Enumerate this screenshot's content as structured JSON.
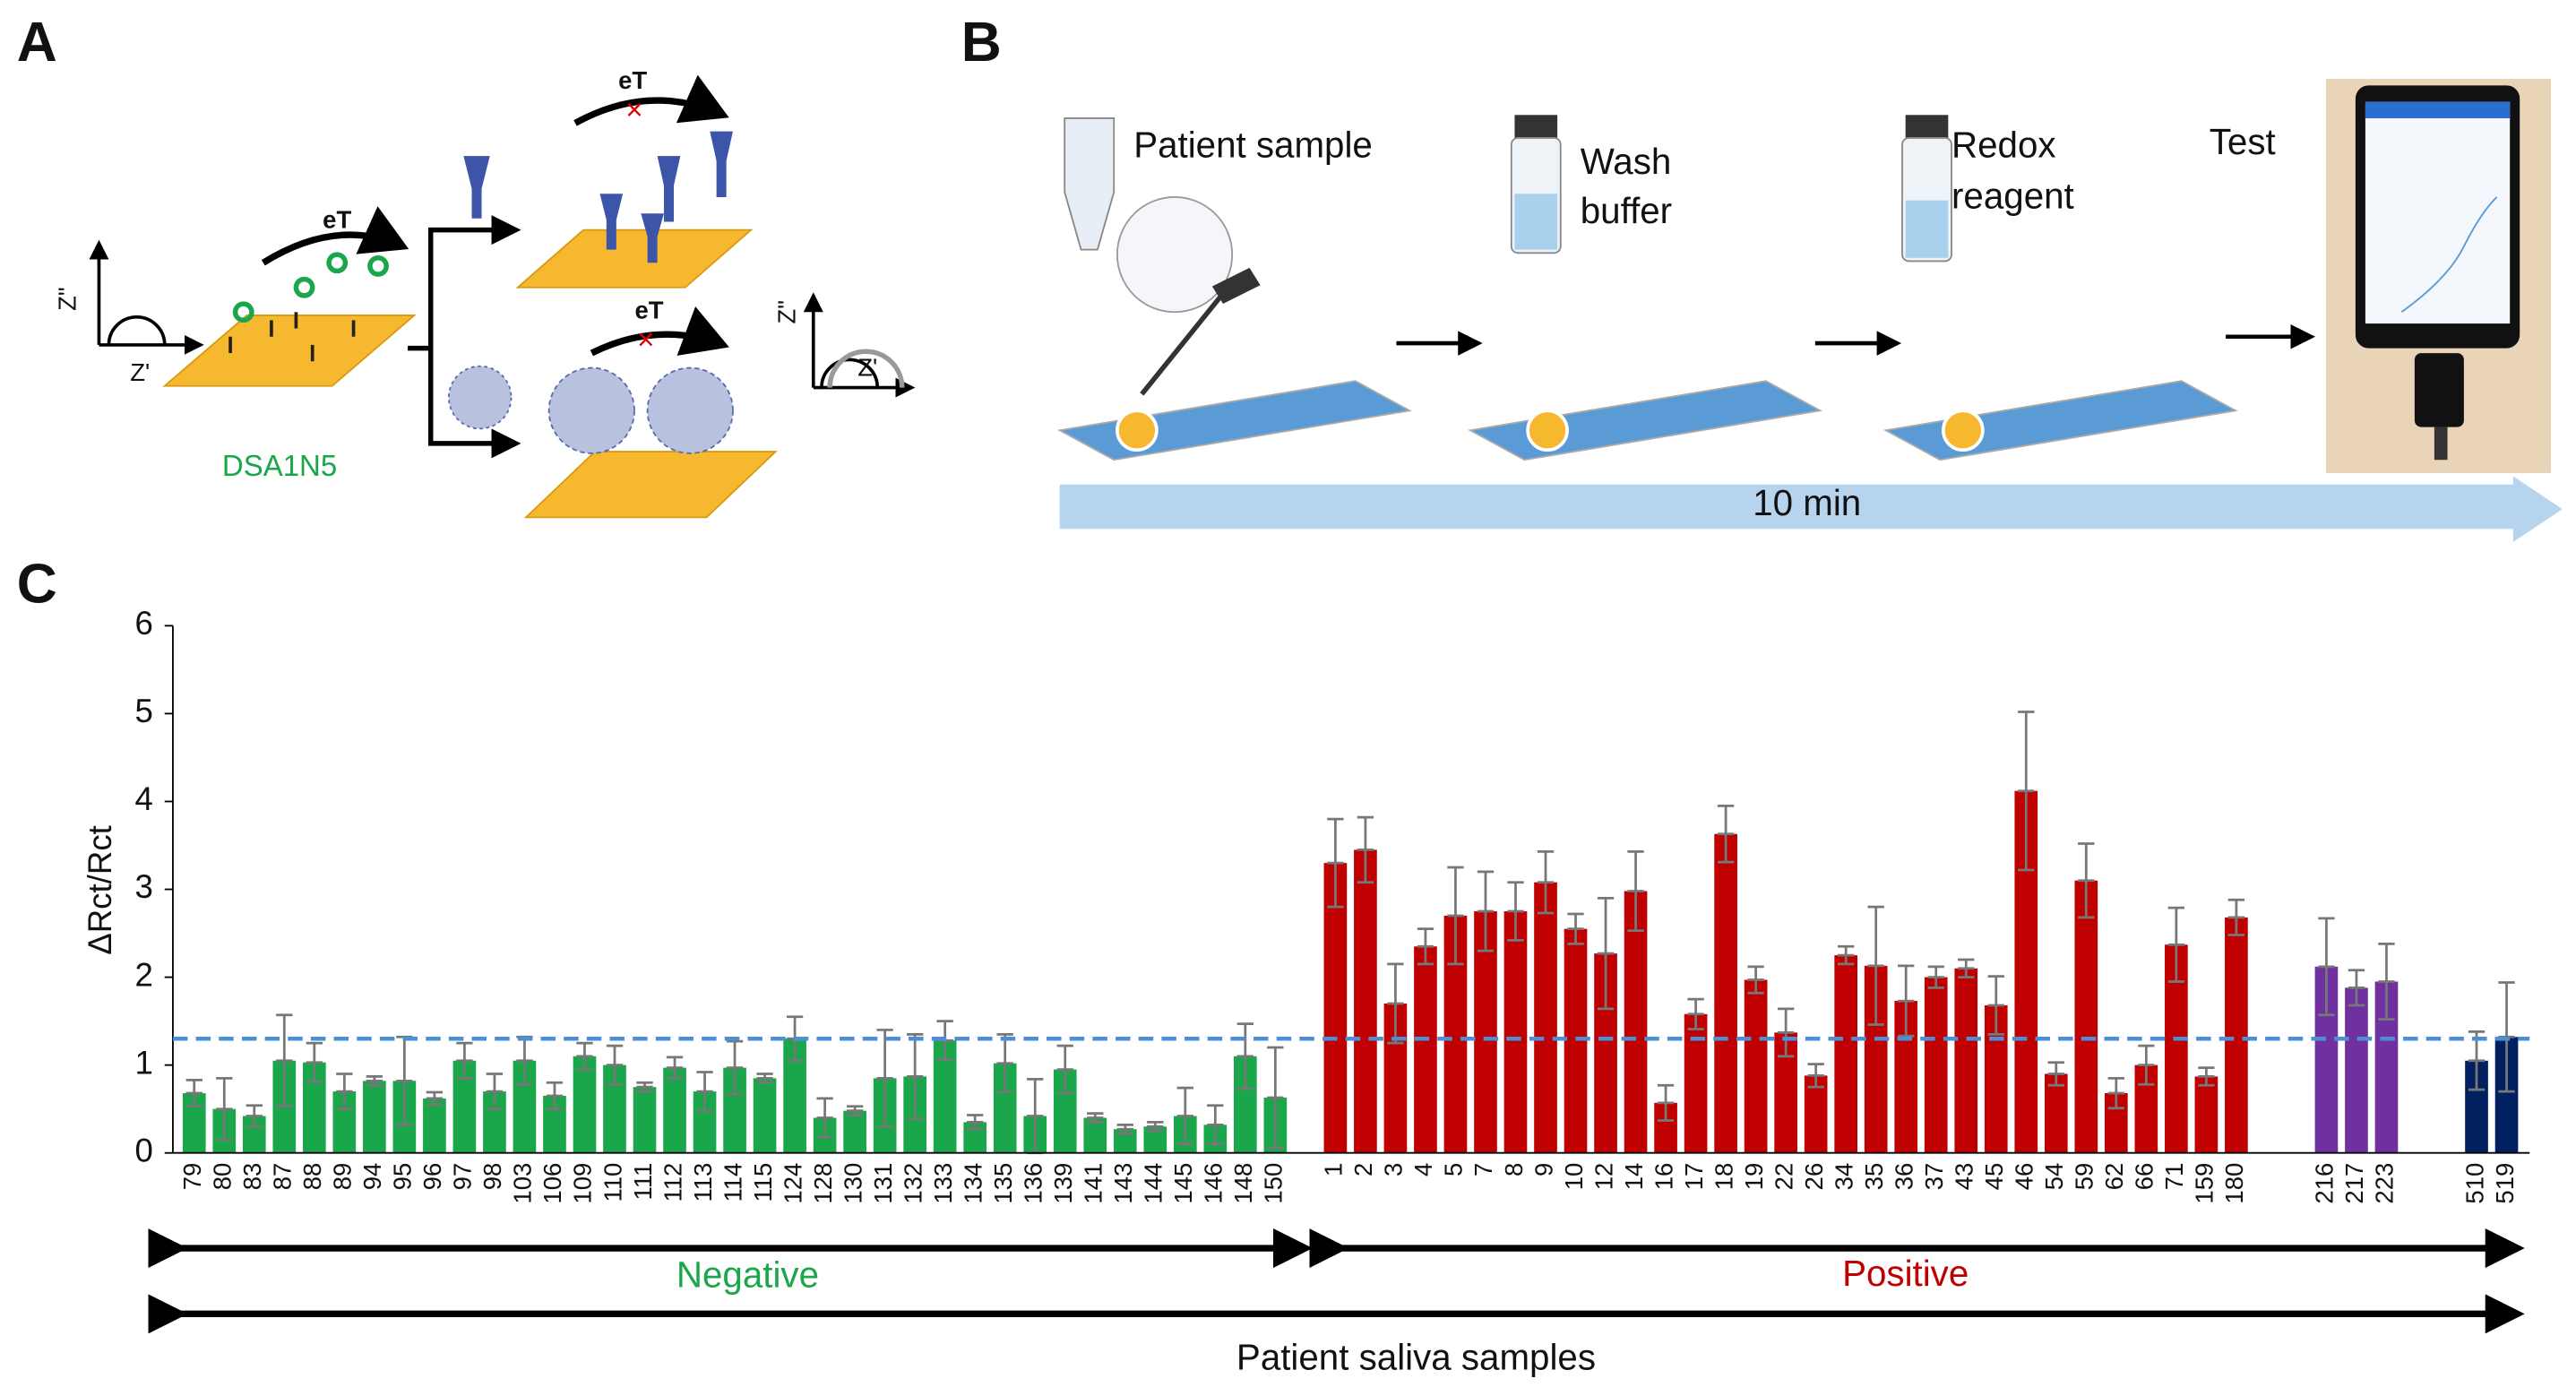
{
  "figure": {
    "panel_labels": [
      "A",
      "B",
      "C"
    ],
    "panel_a": {
      "probe": "DSA1N5",
      "electron_transfer": [
        "eT",
        "eT",
        "eT"
      ],
      "axis_labels": [
        "Z\"",
        "Z'",
        "Z\"",
        "Z'"
      ]
    },
    "panel_b": {
      "steps": [
        [
          "Patient sample"
        ],
        [
          "Wash",
          "buffer"
        ],
        [
          "Redox",
          "reagent"
        ],
        [
          "Test"
        ]
      ],
      "time": "10 min"
    }
  },
  "chart_data": {
    "type": "bar",
    "ylabel": "ΔRct/Rct",
    "categories": [
      "79",
      "80",
      "83",
      "87",
      "88",
      "89",
      "94",
      "95",
      "96",
      "97",
      "98",
      "103",
      "106",
      "109",
      "110",
      "111",
      "112",
      "113",
      "114",
      "115",
      "124",
      "128",
      "130",
      "131",
      "132",
      "133",
      "134",
      "135",
      "136",
      "139",
      "141",
      "143",
      "144",
      "145",
      "146",
      "148",
      "150",
      null,
      "1",
      "2",
      "3",
      "4",
      "5",
      "7",
      "8",
      "9",
      "10",
      "12",
      "14",
      "16",
      "17",
      "18",
      "19",
      "22",
      "26",
      "34",
      "35",
      "36",
      "37",
      "43",
      "45",
      "46",
      "54",
      "59",
      "62",
      "66",
      "71",
      "159",
      "180",
      null,
      null,
      "216",
      "217",
      "223",
      null,
      null,
      "510",
      "519"
    ],
    "values": [
      0.68,
      0.5,
      0.42,
      1.05,
      1.03,
      0.7,
      0.82,
      0.82,
      0.62,
      1.05,
      0.7,
      1.05,
      0.65,
      1.1,
      1.0,
      0.75,
      0.97,
      0.7,
      0.97,
      0.85,
      1.3,
      0.4,
      0.48,
      0.85,
      0.87,
      1.28,
      0.35,
      1.02,
      0.42,
      0.95,
      0.4,
      0.27,
      0.3,
      0.42,
      0.32,
      1.1,
      0.63,
      null,
      3.3,
      3.45,
      1.7,
      2.35,
      2.7,
      2.75,
      2.75,
      3.08,
      2.55,
      2.27,
      2.98,
      0.57,
      1.58,
      3.63,
      1.97,
      1.37,
      0.88,
      2.25,
      2.13,
      1.73,
      2.0,
      2.1,
      1.68,
      4.12,
      0.9,
      3.1,
      0.68,
      1.0,
      2.37,
      0.87,
      2.68,
      null,
      null,
      2.12,
      1.88,
      1.95,
      null,
      null,
      1.05,
      1.32
    ],
    "errors": [
      0.15,
      0.35,
      0.12,
      0.52,
      0.22,
      0.2,
      0.05,
      0.5,
      0.07,
      0.2,
      0.2,
      0.27,
      0.15,
      0.15,
      0.22,
      0.05,
      0.12,
      0.22,
      0.3,
      0.05,
      0.25,
      0.22,
      0.05,
      0.55,
      0.48,
      0.22,
      0.08,
      0.33,
      0.42,
      0.27,
      0.05,
      0.05,
      0.05,
      0.32,
      0.22,
      0.37,
      0.57,
      null,
      0.5,
      0.37,
      0.45,
      0.2,
      0.55,
      0.45,
      0.33,
      0.35,
      0.17,
      0.63,
      0.45,
      0.2,
      0.17,
      0.32,
      0.15,
      0.27,
      0.13,
      0.1,
      0.67,
      0.4,
      0.12,
      0.1,
      0.33,
      0.9,
      0.13,
      0.42,
      0.17,
      0.22,
      0.42,
      0.1,
      0.2,
      null,
      null,
      0.55,
      0.2,
      0.43,
      null,
      null,
      0.33,
      0.62
    ],
    "colors": [
      "#1aa64a",
      "#1aa64a",
      "#1aa64a",
      "#1aa64a",
      "#1aa64a",
      "#1aa64a",
      "#1aa64a",
      "#1aa64a",
      "#1aa64a",
      "#1aa64a",
      "#1aa64a",
      "#1aa64a",
      "#1aa64a",
      "#1aa64a",
      "#1aa64a",
      "#1aa64a",
      "#1aa64a",
      "#1aa64a",
      "#1aa64a",
      "#1aa64a",
      "#1aa64a",
      "#1aa64a",
      "#1aa64a",
      "#1aa64a",
      "#1aa64a",
      "#1aa64a",
      "#1aa64a",
      "#1aa64a",
      "#1aa64a",
      "#1aa64a",
      "#1aa64a",
      "#1aa64a",
      "#1aa64a",
      "#1aa64a",
      "#1aa64a",
      "#1aa64a",
      "#1aa64a",
      null,
      "#c00000",
      "#c00000",
      "#c00000",
      "#c00000",
      "#c00000",
      "#c00000",
      "#c00000",
      "#c00000",
      "#c00000",
      "#c00000",
      "#c00000",
      "#c00000",
      "#c00000",
      "#c00000",
      "#c00000",
      "#c00000",
      "#c00000",
      "#c00000",
      "#c00000",
      "#c00000",
      "#c00000",
      "#c00000",
      "#c00000",
      "#c00000",
      "#c00000",
      "#c00000",
      "#c00000",
      "#c00000",
      "#c00000",
      "#c00000",
      "#c00000",
      null,
      null,
      "#7030a0",
      "#7030a0",
      "#7030a0",
      null,
      null,
      "#002060",
      "#002060"
    ],
    "threshold": 1.3,
    "threshold_color": "#4a8fd8",
    "ylim": [
      0,
      6
    ],
    "yticks": [
      0,
      1,
      2,
      3,
      4,
      5,
      6
    ],
    "group_labels": [
      {
        "text": "Negative",
        "color": "#1aa64a"
      },
      {
        "text": "Positive",
        "color": "#c00000"
      }
    ],
    "overall_label": "Patient saliva samples"
  }
}
